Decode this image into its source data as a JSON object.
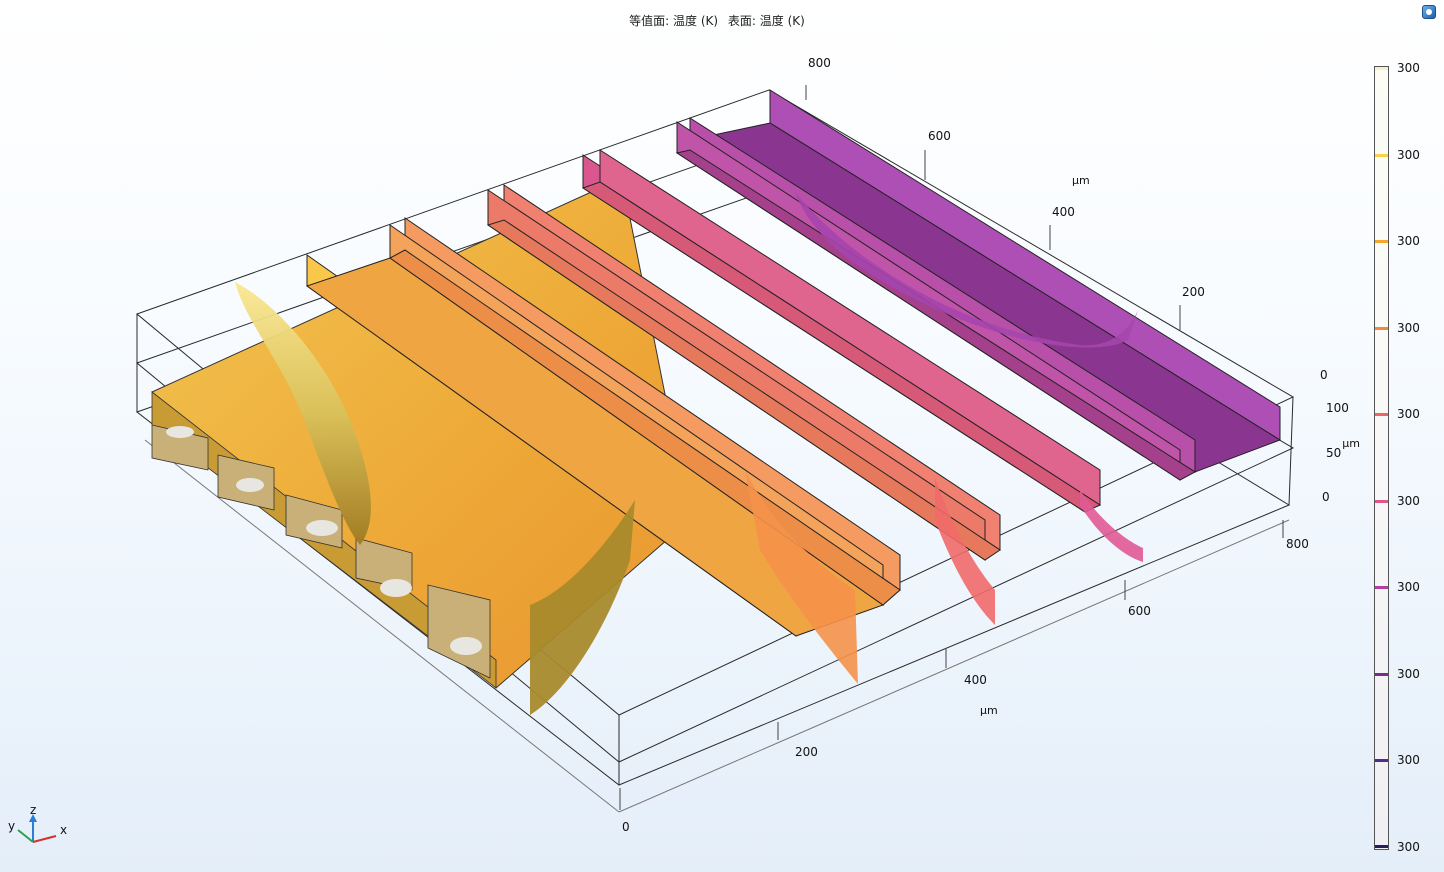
{
  "title": {
    "isosurface": "等值面: 温度 (K)",
    "surface": "表面: 温度 (K)"
  },
  "axes": {
    "x": {
      "ticks": [
        "0",
        "200",
        "400",
        "600",
        "800"
      ],
      "unit": "µm"
    },
    "y": {
      "ticks": [
        "200",
        "400",
        "600",
        "800"
      ],
      "unit": "µm"
    },
    "z": {
      "ticks": [
        "0",
        "50",
        "100"
      ],
      "unit": "µm"
    }
  },
  "triad": {
    "x": "x",
    "y": "y",
    "z": "z"
  },
  "colorbar": {
    "labels": [
      "300",
      "300",
      "300",
      "300",
      "300",
      "300",
      "300",
      "300",
      "300",
      "300"
    ],
    "level_colors": [
      "#f5f1c8",
      "#f7d24a",
      "#f4a72e",
      "#f28a3a",
      "#ef6460",
      "#e0558a",
      "#b340a0",
      "#7a2c8a",
      "#552a90",
      "#2a1a5e"
    ]
  },
  "icons": [
    "triad-icon",
    "corner-logo-icon"
  ]
}
